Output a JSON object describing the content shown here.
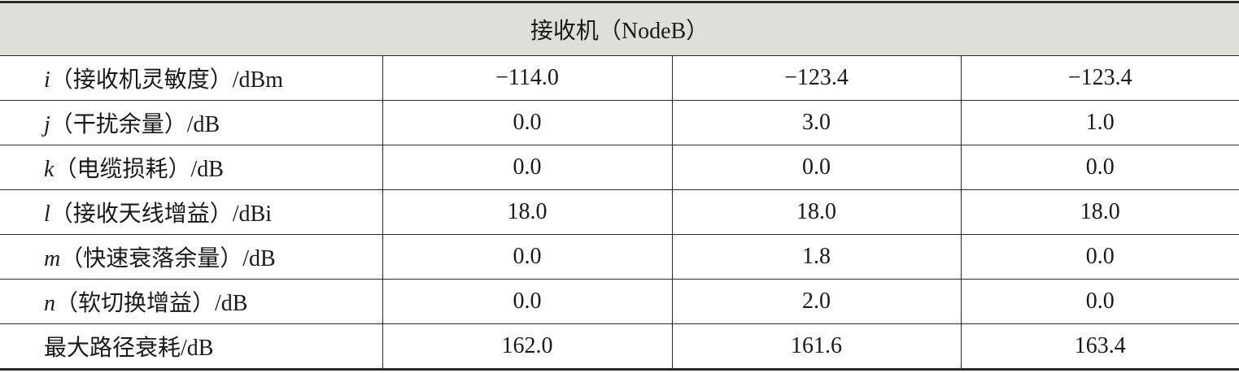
{
  "table": {
    "title": "接收机（NodeB）",
    "rows": [
      {
        "var": "i",
        "label": "（接收机灵敏度）/dBm",
        "values": [
          "−114.0",
          "−123.4",
          "−123.4"
        ]
      },
      {
        "var": "j",
        "label": "（干扰余量）/dB",
        "values": [
          "0.0",
          "3.0",
          "1.0"
        ]
      },
      {
        "var": "k",
        "label": "（电缆损耗）/dB",
        "values": [
          "0.0",
          "0.0",
          "0.0"
        ]
      },
      {
        "var": "l",
        "label": "（接收天线增益）/dBi",
        "values": [
          "18.0",
          "18.0",
          "18.0"
        ]
      },
      {
        "var": "m",
        "label": "（快速衰落余量）/dB",
        "values": [
          "0.0",
          "1.8",
          "0.0"
        ]
      },
      {
        "var": "n",
        "label": "（软切换增益）/dB",
        "values": [
          "0.0",
          "2.0",
          "0.0"
        ]
      },
      {
        "label": "最大路径衰耗/dB",
        "values": [
          "162.0",
          "161.6",
          "163.4"
        ]
      }
    ]
  }
}
